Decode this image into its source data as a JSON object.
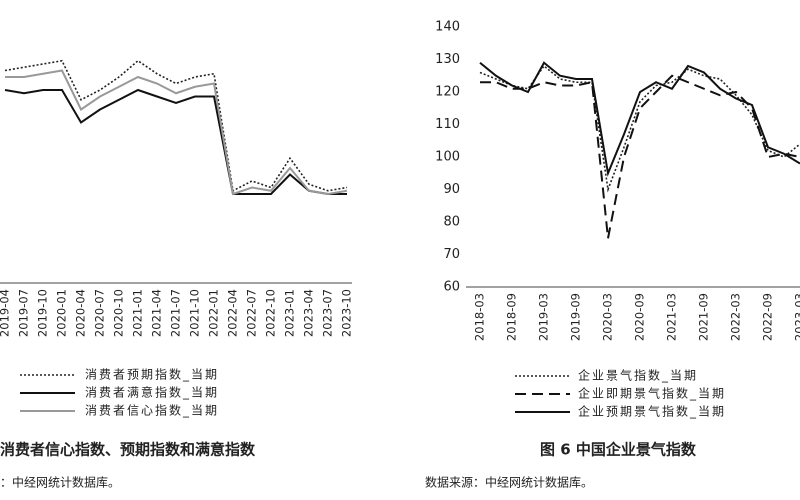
{
  "chart_data": [
    {
      "type": "line",
      "title": "消费者信心指数、预期指数和满意指数",
      "source": "：中经网统计数据库。",
      "categories": [
        "2019-04",
        "2019-07",
        "2019-10",
        "2020-01",
        "2020-04",
        "2020-07",
        "2020-10",
        "2021-01",
        "2021-04",
        "2021-07",
        "2021-10",
        "2022-01",
        "2022-04",
        "2022-07",
        "2022-10",
        "2023-01",
        "2023-04",
        "2023-07",
        "2023-10"
      ],
      "ylim": [
        60,
        140
      ],
      "series": [
        {
          "name": "消费者预期指数_当期",
          "color": "#222222",
          "dash": "dotted",
          "values": [
            126,
            127,
            128,
            129,
            117,
            120,
            124,
            129,
            125,
            122,
            124,
            125,
            89,
            92,
            90,
            99,
            91,
            89,
            90
          ]
        },
        {
          "name": "消费者满意指数_当期",
          "color": "#111111",
          "dash": "solid",
          "values": [
            120,
            119,
            120,
            120,
            110,
            114,
            117,
            120,
            118,
            116,
            118,
            118,
            88,
            88,
            88,
            94,
            89,
            88,
            88
          ]
        },
        {
          "name": "消费者信心指数_当期",
          "color": "#999999",
          "dash": "solid",
          "values": [
            124,
            124,
            125,
            126,
            114,
            118,
            121,
            124,
            122,
            119,
            121,
            122,
            88,
            90,
            89,
            96,
            89,
            88,
            89
          ]
        }
      ]
    },
    {
      "type": "line",
      "title": "图 6  中国企业景气指数",
      "source": "数据来源：中经网统计数据库。",
      "categories": [
        "2018-03",
        null,
        "2018-09",
        null,
        "2019-03",
        null,
        "2019-09",
        null,
        "2020-03",
        null,
        "2020-09",
        null,
        "2021-03",
        null,
        "2021-09",
        null,
        "2022-03",
        null,
        "2022-09",
        null,
        "2023-03"
      ],
      "ylim": [
        60,
        140
      ],
      "yticks": [
        60,
        70,
        80,
        90,
        100,
        110,
        120,
        130,
        140
      ],
      "series": [
        {
          "name": "企业景气指数_当期",
          "color": "#222222",
          "dash": "dotted",
          "values": [
            126,
            124,
            122,
            121,
            128,
            124,
            123,
            123,
            90,
            103,
            117,
            122,
            123,
            127,
            125,
            124,
            119,
            113,
            102,
            100,
            104
          ]
        },
        {
          "name": "企业即期景气指数_当期",
          "color": "#111111",
          "dash": "dashed",
          "values": [
            123,
            123,
            121,
            121,
            123,
            122,
            122,
            123,
            75,
            100,
            115,
            120,
            125,
            123,
            121,
            119,
            120,
            115,
            100,
            101,
            100
          ]
        },
        {
          "name": "企业预期景气指数_当期",
          "color": "#111111",
          "dash": "solid",
          "values": [
            129,
            125,
            122,
            120,
            129,
            125,
            124,
            124,
            95,
            107,
            120,
            123,
            121,
            128,
            126,
            121,
            118,
            116,
            103,
            101,
            98
          ]
        }
      ]
    }
  ]
}
